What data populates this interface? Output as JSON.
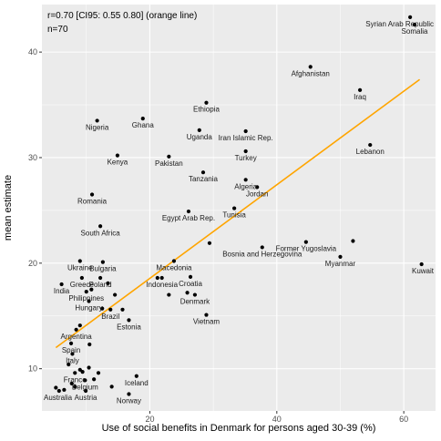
{
  "chart_data": {
    "type": "scatter",
    "annotation": [
      "r=0.70 [CI95: 0.55 0.80] (orange line)",
      "n=70"
    ],
    "xlabel": "Use of social benefits in Denmark for persons aged 30-39 (%)",
    "ylabel": "mean estimate",
    "xlim": [
      3,
      65
    ],
    "ylim": [
      6,
      44.5
    ],
    "x_ticks": [
      20,
      40,
      60
    ],
    "y_ticks": [
      10,
      20,
      30,
      40
    ],
    "grid": true,
    "colors": {
      "panel": "#ebebeb",
      "grid_major": "#ffffff",
      "point": "#000000",
      "fit_line": "#ffa500"
    },
    "fit_line": {
      "x": [
        5.2,
        62.5
      ],
      "y": [
        12.0,
        37.4
      ]
    },
    "points": [
      {
        "label": "Syrian Arab Republic",
        "x": 61.0,
        "y": 43.3
      },
      {
        "label": "Somalia",
        "x": 61.7,
        "y": 42.6
      },
      {
        "label": "Afghanistan",
        "x": 45.3,
        "y": 38.6
      },
      {
        "label": "Iraq",
        "x": 53.1,
        "y": 36.4
      },
      {
        "label": "Ethiopia",
        "x": 28.9,
        "y": 35.2
      },
      {
        "label": "Nigeria",
        "x": 11.7,
        "y": 33.5
      },
      {
        "label": "Ghana",
        "x": 18.9,
        "y": 33.7
      },
      {
        "label": "Uganda",
        "x": 27.8,
        "y": 32.6
      },
      {
        "label": "Iran Islamic Rep.",
        "x": 35.1,
        "y": 32.5
      },
      {
        "label": "Lebanon",
        "x": 54.7,
        "y": 31.2
      },
      {
        "label": "Turkey",
        "x": 35.1,
        "y": 30.6
      },
      {
        "label": "Kenya",
        "x": 14.9,
        "y": 30.2
      },
      {
        "label": "Pakistan",
        "x": 23.0,
        "y": 30.1
      },
      {
        "label": "Tanzania",
        "x": 28.4,
        "y": 28.6
      },
      {
        "label": "Algeria",
        "x": 35.1,
        "y": 27.9
      },
      {
        "label": "Jordan",
        "x": 36.9,
        "y": 27.2
      },
      {
        "label": "Romania",
        "x": 10.9,
        "y": 26.5
      },
      {
        "label": "Egypt Arab Rep.",
        "x": 26.1,
        "y": 24.9
      },
      {
        "label": "Tunisia",
        "x": 33.3,
        "y": 25.2
      },
      {
        "label": "South Africa",
        "x": 12.2,
        "y": 23.5
      },
      {
        "label": "Former Yugoslavia",
        "x": 44.6,
        "y": 22.0
      },
      {
        "label": "Bosnia and Herzegovina",
        "x": 37.7,
        "y": 21.5
      },
      {
        "label": "Myanmar",
        "x": 50.0,
        "y": 20.6
      },
      {
        "label": "Kuwait",
        "x": 62.8,
        "y": 19.9
      },
      {
        "label": "Ukraine",
        "x": 9.0,
        "y": 20.2
      },
      {
        "label": "Bulgaria",
        "x": 12.6,
        "y": 20.1
      },
      {
        "label": "Macedonia",
        "x": 23.8,
        "y": 20.2
      },
      {
        "label": "India",
        "x": 6.1,
        "y": 18.0
      },
      {
        "label": "Greece",
        "x": 9.3,
        "y": 18.6
      },
      {
        "label": "Poland",
        "x": 12.2,
        "y": 18.6
      },
      {
        "label": "Indonesia",
        "x": 21.9,
        "y": 18.6
      },
      {
        "label": "Croatia",
        "x": 26.4,
        "y": 18.7
      },
      {
        "label": "Philippines",
        "x": 10.0,
        "y": 17.3
      },
      {
        "label": "Denmark",
        "x": 27.1,
        "y": 17.0
      },
      {
        "label": "Hungary",
        "x": 10.4,
        "y": 16.4
      },
      {
        "label": "Brazil",
        "x": 13.8,
        "y": 15.6
      },
      {
        "label": "Vietnam",
        "x": 28.9,
        "y": 15.1
      },
      {
        "label": "Estonia",
        "x": 16.7,
        "y": 14.6
      },
      {
        "label": "Argentina",
        "x": 8.4,
        "y": 13.7
      },
      {
        "label": "Spain",
        "x": 7.6,
        "y": 12.4
      },
      {
        "label": "Italy",
        "x": 7.8,
        "y": 11.4
      },
      {
        "label": "France",
        "x": 8.2,
        "y": 9.6
      },
      {
        "label": "Belgium",
        "x": 9.8,
        "y": 8.9
      },
      {
        "label": "Iceland",
        "x": 17.9,
        "y": 9.3
      },
      {
        "label": "Australia",
        "x": 5.7,
        "y": 7.9
      },
      {
        "label": "Austria",
        "x": 9.9,
        "y": 7.9
      },
      {
        "label": "Norway",
        "x": 16.7,
        "y": 7.6
      },
      {
        "label": "",
        "x": 52.0,
        "y": 22.1
      },
      {
        "label": "",
        "x": 29.4,
        "y": 21.9
      },
      {
        "label": "",
        "x": 13.4,
        "y": 18.1
      },
      {
        "label": "",
        "x": 21.2,
        "y": 18.6
      },
      {
        "label": "",
        "x": 10.8,
        "y": 17.5
      },
      {
        "label": "",
        "x": 23.0,
        "y": 17.0
      },
      {
        "label": "",
        "x": 25.9,
        "y": 17.2
      },
      {
        "label": "",
        "x": 14.5,
        "y": 17.0
      },
      {
        "label": "",
        "x": 12.5,
        "y": 15.7
      },
      {
        "label": "",
        "x": 15.7,
        "y": 15.6
      },
      {
        "label": "",
        "x": 9.0,
        "y": 14.1
      },
      {
        "label": "",
        "x": 10.5,
        "y": 12.3
      },
      {
        "label": "",
        "x": 7.2,
        "y": 10.4
      },
      {
        "label": "",
        "x": 9.0,
        "y": 9.9
      },
      {
        "label": "",
        "x": 10.4,
        "y": 10.1
      },
      {
        "label": "",
        "x": 11.9,
        "y": 9.6
      },
      {
        "label": "",
        "x": 11.2,
        "y": 9.0
      },
      {
        "label": "",
        "x": 9.4,
        "y": 9.7
      },
      {
        "label": "",
        "x": 7.7,
        "y": 8.6
      },
      {
        "label": "",
        "x": 5.2,
        "y": 8.2
      },
      {
        "label": "",
        "x": 6.5,
        "y": 8.0
      },
      {
        "label": "",
        "x": 8.2,
        "y": 8.3
      },
      {
        "label": "",
        "x": 14.0,
        "y": 8.3
      }
    ]
  }
}
